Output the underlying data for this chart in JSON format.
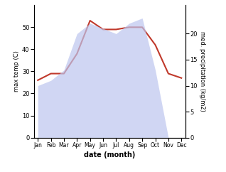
{
  "months": [
    "Jan",
    "Feb",
    "Mar",
    "Apr",
    "May",
    "Jun",
    "Jul",
    "Aug",
    "Sep",
    "Oct",
    "Nov",
    "Dec"
  ],
  "temperature": [
    26,
    29,
    29,
    38,
    53,
    49,
    49,
    50,
    50,
    42,
    29,
    27
  ],
  "precipitation": [
    10,
    11,
    13,
    20,
    22,
    21,
    20,
    22,
    23,
    13,
    0,
    0
  ],
  "temp_color": "#c0392b",
  "precip_fill_color": "#bcc5ee",
  "temp_ylim": [
    0,
    60
  ],
  "precip_ylim": [
    0,
    25.5
  ],
  "temp_yticks": [
    0,
    10,
    20,
    30,
    40,
    50
  ],
  "precip_yticks": [
    0,
    5,
    10,
    15,
    20
  ],
  "ylabel_left": "max temp (C)",
  "ylabel_right": "med. precipitation (kg/m2)",
  "xlabel": "date (month)",
  "bg_color": "#ffffff"
}
